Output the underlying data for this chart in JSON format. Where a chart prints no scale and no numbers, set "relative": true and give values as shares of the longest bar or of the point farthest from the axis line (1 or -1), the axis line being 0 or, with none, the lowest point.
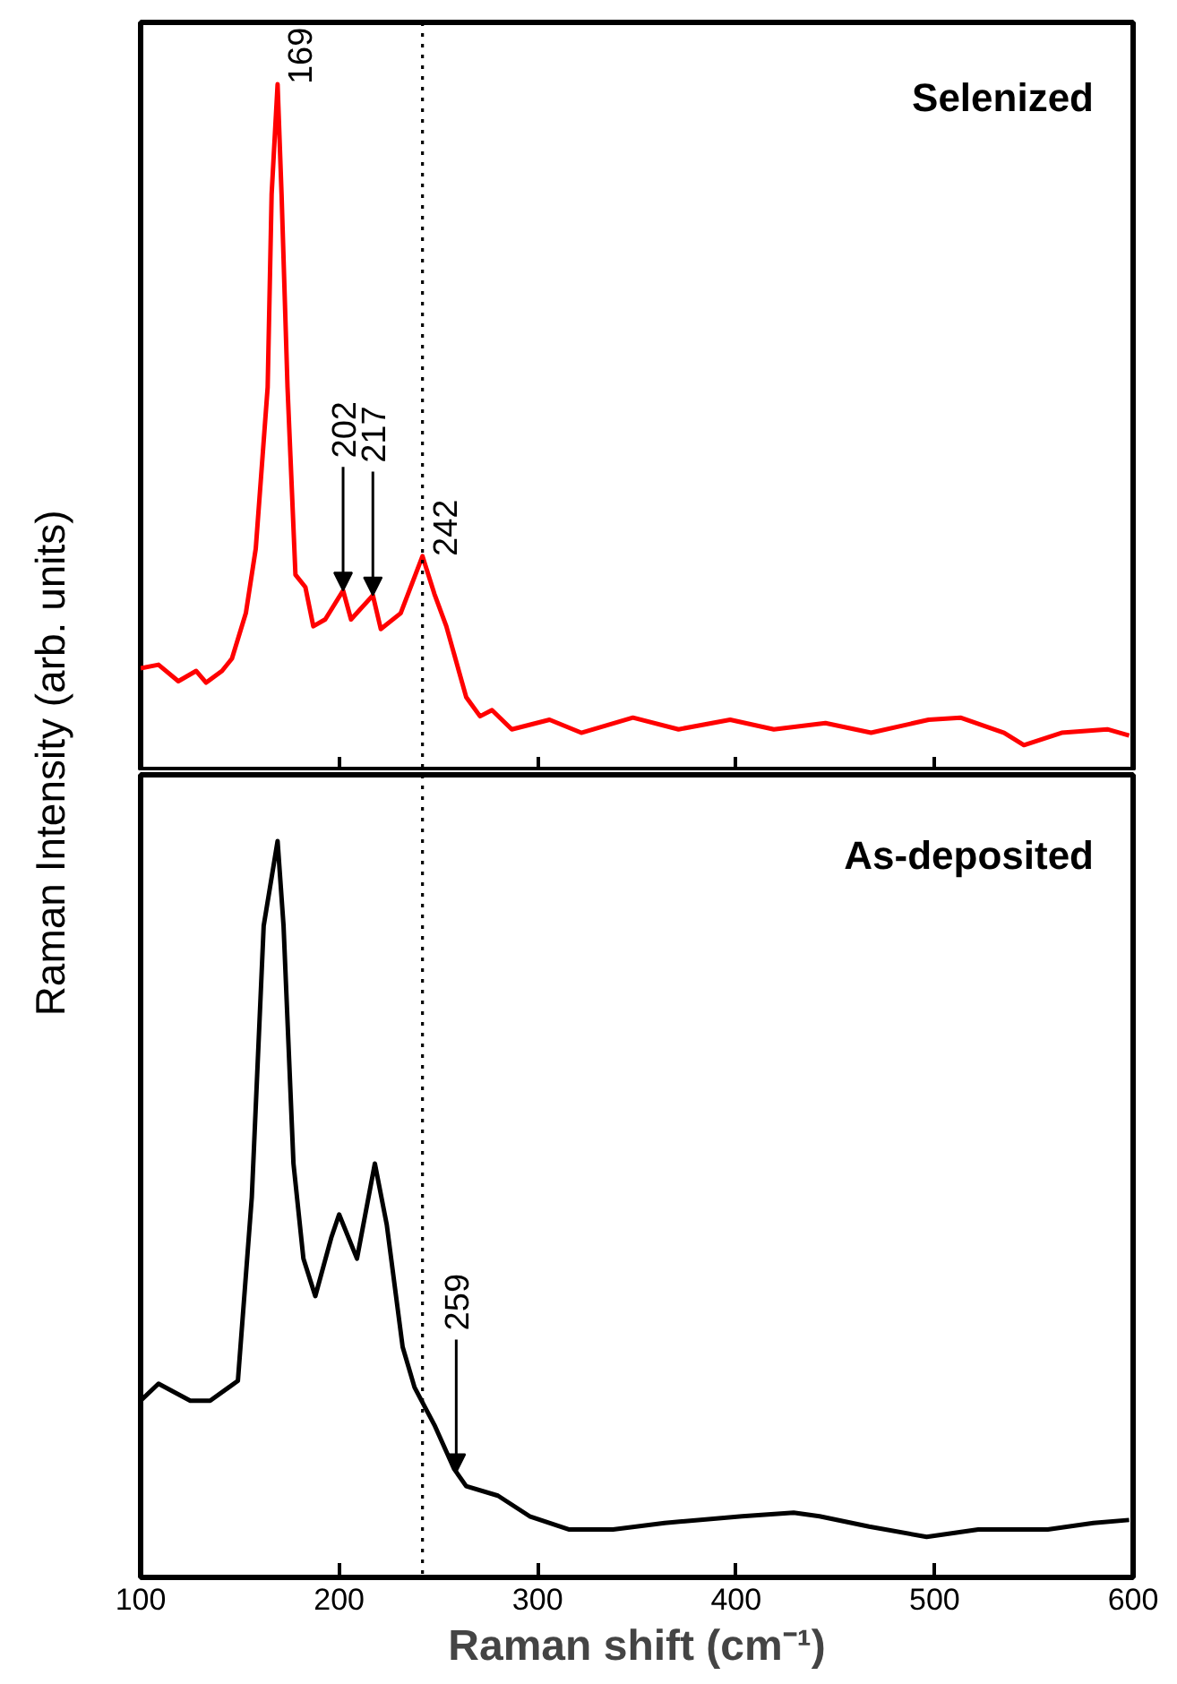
{
  "chart_data": [
    {
      "type": "line",
      "title": "Selenized",
      "ylabel": "Raman Intensity (arb. units)",
      "relative": true,
      "xlim": [
        100,
        600
      ],
      "xticks": [
        100,
        200,
        300,
        400,
        500,
        600
      ],
      "tick_labels": false,
      "grid": false,
      "x": [
        100,
        109,
        119,
        128,
        133,
        141,
        146,
        153,
        158,
        164,
        166,
        169,
        171,
        174,
        178,
        183,
        187,
        193,
        202,
        206,
        217,
        221,
        231,
        242,
        248,
        254,
        264,
        271,
        277,
        287,
        306,
        322,
        348,
        371,
        397,
        419,
        445,
        468,
        497,
        513,
        535,
        545,
        564,
        587,
        598
      ],
      "series": [
        {
          "color": "#ff0000",
          "values": [
            0.15,
            0.155,
            0.131,
            0.146,
            0.129,
            0.146,
            0.164,
            0.23,
            0.324,
            0.559,
            0.84,
            1.0,
            0.84,
            0.559,
            0.286,
            0.268,
            0.211,
            0.221,
            0.263,
            0.221,
            0.256,
            0.207,
            0.23,
            0.313,
            0.258,
            0.211,
            0.108,
            0.08,
            0.089,
            0.061,
            0.075,
            0.056,
            0.078,
            0.061,
            0.075,
            0.061,
            0.07,
            0.056,
            0.075,
            0.078,
            0.056,
            0.038,
            0.056,
            0.061,
            0.052
          ]
        }
      ],
      "annotations": [
        {
          "text": "169",
          "x": 169,
          "y": 1.0
        },
        {
          "text": "202",
          "x": 202,
          "y": 0.263
        },
        {
          "text": "217",
          "x": 217,
          "y": 0.256
        },
        {
          "text": "242",
          "x": 242,
          "y": 0.313
        }
      ],
      "ref_lines": [
        {
          "axis": "x",
          "value": 242,
          "line_style": "dotted",
          "color": "#000000"
        }
      ]
    },
    {
      "type": "line",
      "title": "As-deposited",
      "xlabel": "Raman shift (cm⁻¹)",
      "relative": true,
      "xlim": [
        100,
        600
      ],
      "xticks": [
        100,
        200,
        300,
        400,
        500,
        600
      ],
      "tick_labels": "x",
      "grid": false,
      "x": [
        100,
        109,
        125,
        135,
        149,
        156,
        162,
        169,
        172,
        177,
        182,
        188,
        196,
        200,
        209,
        218,
        224,
        232,
        238,
        248,
        258,
        264,
        280,
        296,
        316,
        338,
        364,
        403,
        429,
        442,
        467,
        496,
        522,
        557,
        580,
        598
      ],
      "series": [
        {
          "color": "#000000",
          "values": [
            0.24,
            0.263,
            0.24,
            0.24,
            0.267,
            0.516,
            0.885,
            1.0,
            0.885,
            0.562,
            0.433,
            0.382,
            0.461,
            0.493,
            0.433,
            0.562,
            0.479,
            0.313,
            0.258,
            0.207,
            0.147,
            0.124,
            0.111,
            0.083,
            0.065,
            0.065,
            0.074,
            0.083,
            0.088,
            0.083,
            0.069,
            0.055,
            0.065,
            0.065,
            0.074,
            0.078
          ]
        }
      ],
      "annotations": [
        {
          "text": "259",
          "x": 259,
          "y": 0.143
        }
      ],
      "ref_lines": [
        {
          "axis": "x",
          "value": 242,
          "line_style": "dotted",
          "color": "#000000"
        }
      ]
    }
  ]
}
